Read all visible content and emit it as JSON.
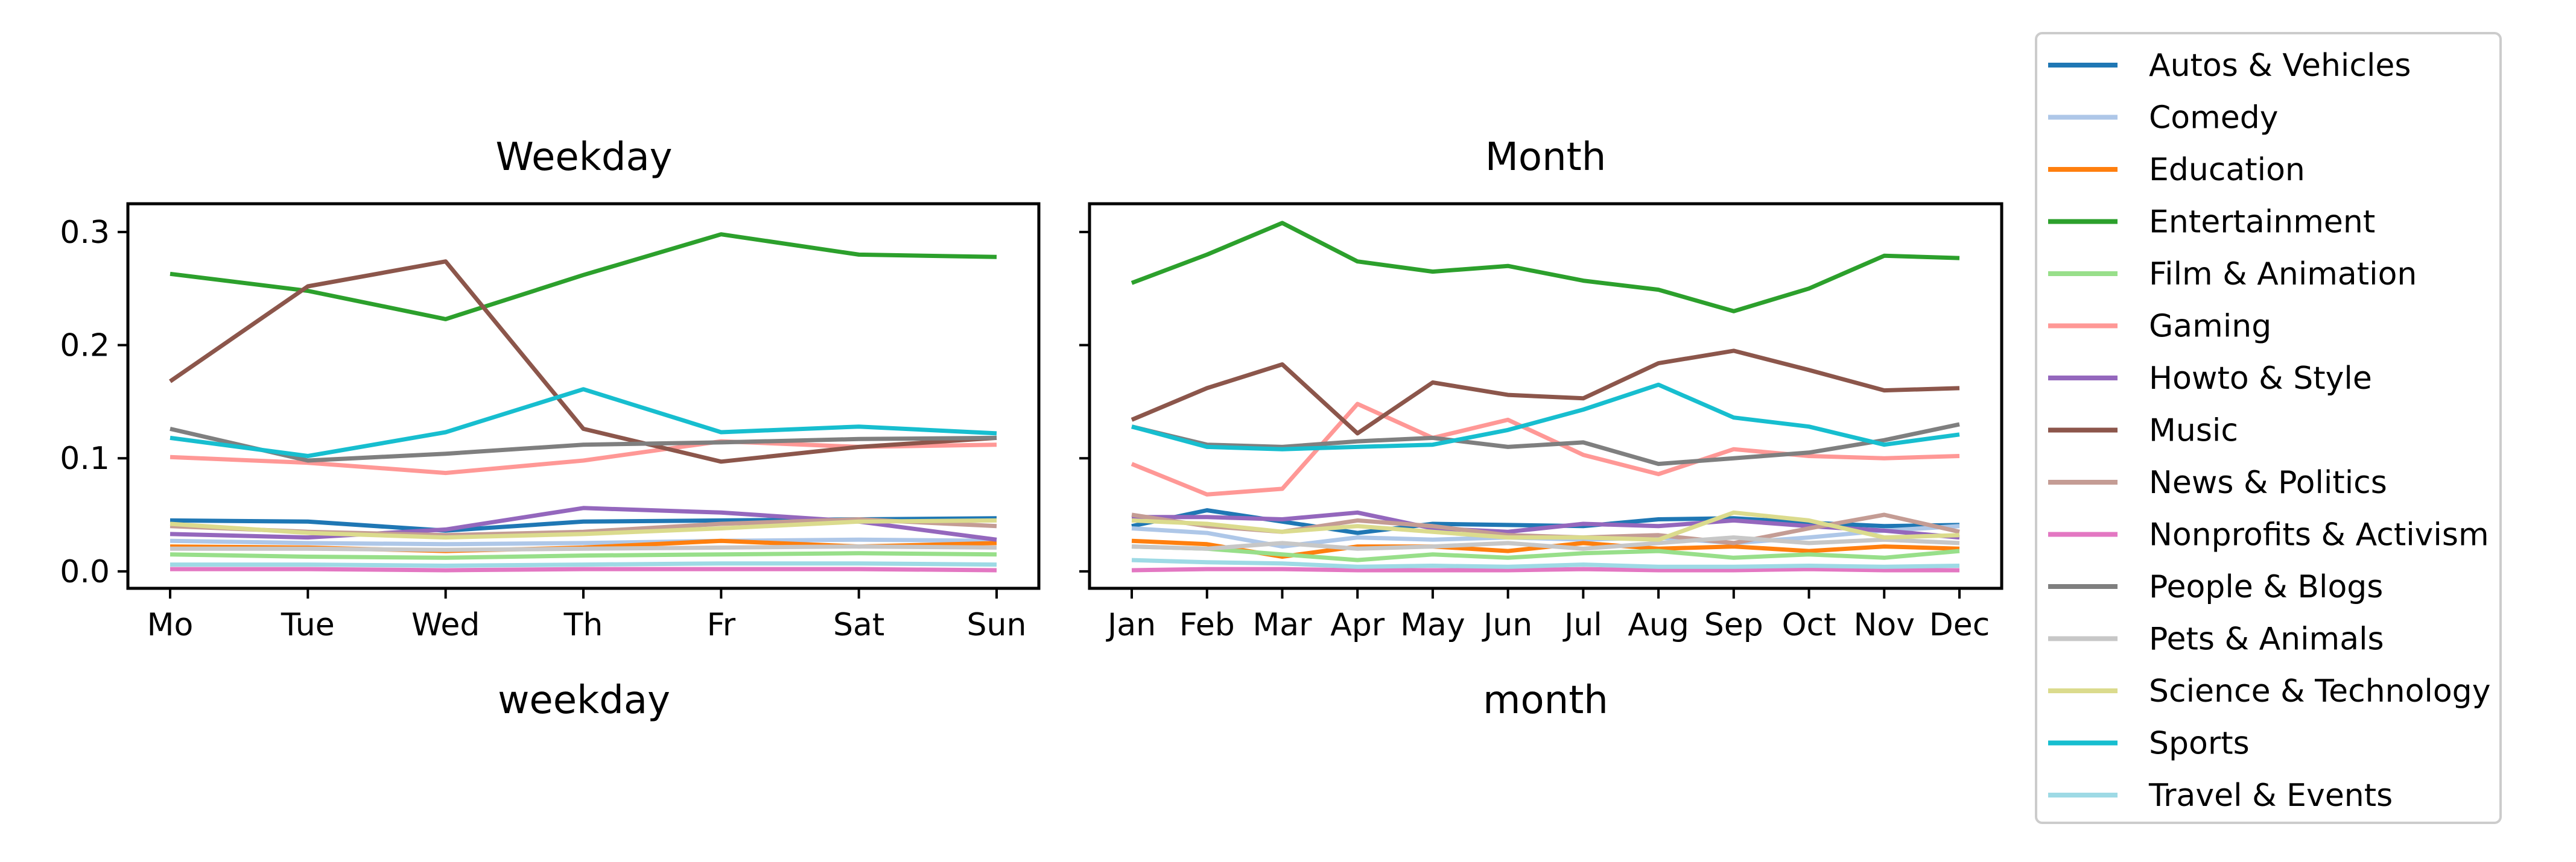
{
  "chart_data": [
    {
      "type": "line",
      "title": "Weekday",
      "xlabel": "weekday",
      "ylabel": "",
      "categories": [
        "Mo",
        "Tue",
        "Wed",
        "Th",
        "Fr",
        "Sat",
        "Sun"
      ],
      "ylim": [
        -0.015,
        0.325
      ],
      "yticks": [
        "0.0",
        "0.1",
        "0.2",
        "0.3"
      ],
      "grid": false,
      "series": [
        {
          "name": "Autos & Vehicles",
          "color": "#1f77b4",
          "values": [
            0.045,
            0.044,
            0.036,
            0.044,
            0.045,
            0.046,
            0.047
          ]
        },
        {
          "name": "Comedy",
          "color": "#aec7e8",
          "values": [
            0.027,
            0.025,
            0.024,
            0.025,
            0.027,
            0.028,
            0.027
          ]
        },
        {
          "name": "Education",
          "color": "#ff7f0e",
          "values": [
            0.022,
            0.021,
            0.018,
            0.021,
            0.027,
            0.022,
            0.025
          ]
        },
        {
          "name": "Entertainment",
          "color": "#2ca02c",
          "values": [
            0.263,
            0.248,
            0.223,
            0.262,
            0.298,
            0.28,
            0.278
          ]
        },
        {
          "name": "Film & Animation",
          "color": "#98df8a",
          "values": [
            0.015,
            0.013,
            0.012,
            0.014,
            0.015,
            0.016,
            0.015
          ]
        },
        {
          "name": "Gaming",
          "color": "#ff9896",
          "values": [
            0.101,
            0.096,
            0.087,
            0.098,
            0.115,
            0.11,
            0.112
          ]
        },
        {
          "name": "Howto & Style",
          "color": "#9467bd",
          "values": [
            0.033,
            0.03,
            0.037,
            0.056,
            0.052,
            0.044,
            0.028
          ]
        },
        {
          "name": "Music",
          "color": "#8c564b",
          "values": [
            0.168,
            0.252,
            0.274,
            0.126,
            0.097,
            0.11,
            0.118
          ]
        },
        {
          "name": "News & Politics",
          "color": "#c49c94",
          "values": [
            0.04,
            0.035,
            0.032,
            0.035,
            0.042,
            0.046,
            0.04
          ]
        },
        {
          "name": "Nonprofits & Activism",
          "color": "#e377c2",
          "values": [
            0.002,
            0.002,
            0.001,
            0.002,
            0.002,
            0.002,
            0.001
          ]
        },
        {
          "name": "People & Blogs",
          "color": "#7f7f7f",
          "values": [
            0.126,
            0.098,
            0.104,
            0.112,
            0.114,
            0.117,
            0.118
          ]
        },
        {
          "name": "Pets & Animals",
          "color": "#c7c7c7",
          "values": [
            0.02,
            0.02,
            0.019,
            0.02,
            0.021,
            0.022,
            0.021
          ]
        },
        {
          "name": "Science & Technology",
          "color": "#dbdb8d",
          "values": [
            0.042,
            0.034,
            0.03,
            0.033,
            0.038,
            0.044,
            0.045
          ]
        },
        {
          "name": "Sports",
          "color": "#17becf",
          "values": [
            0.118,
            0.102,
            0.123,
            0.161,
            0.123,
            0.128,
            0.122
          ]
        },
        {
          "name": "Travel & Events",
          "color": "#9edae5",
          "values": [
            0.006,
            0.006,
            0.005,
            0.006,
            0.007,
            0.007,
            0.006
          ]
        }
      ]
    },
    {
      "type": "line",
      "title": "Month",
      "xlabel": "month",
      "ylabel": "",
      "categories": [
        "Jan",
        "Feb",
        "Mar",
        "Apr",
        "May",
        "Jun",
        "Jul",
        "Aug",
        "Sep",
        "Oct",
        "Nov",
        "Dec"
      ],
      "ylim": [
        -0.015,
        0.325
      ],
      "yticks": [
        "",
        "",
        "",
        ""
      ],
      "grid": false,
      "series": [
        {
          "name": "Autos & Vehicles",
          "color": "#1f77b4",
          "values": [
            0.04,
            0.054,
            0.044,
            0.034,
            0.042,
            0.041,
            0.04,
            0.046,
            0.047,
            0.043,
            0.04,
            0.041
          ]
        },
        {
          "name": "Comedy",
          "color": "#aec7e8",
          "values": [
            0.038,
            0.034,
            0.022,
            0.03,
            0.028,
            0.03,
            0.028,
            0.03,
            0.025,
            0.03,
            0.036,
            0.04
          ]
        },
        {
          "name": "Education",
          "color": "#ff7f0e",
          "values": [
            0.027,
            0.024,
            0.013,
            0.022,
            0.022,
            0.018,
            0.025,
            0.02,
            0.022,
            0.018,
            0.022,
            0.02
          ]
        },
        {
          "name": "Entertainment",
          "color": "#2ca02c",
          "values": [
            0.255,
            0.28,
            0.308,
            0.274,
            0.265,
            0.27,
            0.257,
            0.249,
            0.23,
            0.25,
            0.279,
            0.277
          ]
        },
        {
          "name": "Film & Animation",
          "color": "#98df8a",
          "values": [
            0.022,
            0.02,
            0.015,
            0.01,
            0.015,
            0.012,
            0.016,
            0.018,
            0.012,
            0.015,
            0.012,
            0.018
          ]
        },
        {
          "name": "Gaming",
          "color": "#ff9896",
          "values": [
            0.095,
            0.068,
            0.073,
            0.148,
            0.118,
            0.134,
            0.103,
            0.086,
            0.108,
            0.102,
            0.1,
            0.102
          ]
        },
        {
          "name": "Howto & Style",
          "color": "#9467bd",
          "values": [
            0.048,
            0.048,
            0.046,
            0.052,
            0.038,
            0.035,
            0.042,
            0.04,
            0.045,
            0.04,
            0.036,
            0.03
          ]
        },
        {
          "name": "Music",
          "color": "#8c564b",
          "values": [
            0.134,
            0.162,
            0.183,
            0.122,
            0.167,
            0.156,
            0.153,
            0.184,
            0.195,
            0.178,
            0.16,
            0.162
          ]
        },
        {
          "name": "News & Politics",
          "color": "#c49c94",
          "values": [
            0.05,
            0.04,
            0.035,
            0.045,
            0.04,
            0.032,
            0.03,
            0.032,
            0.025,
            0.038,
            0.05,
            0.035
          ]
        },
        {
          "name": "Nonprofits & Activism",
          "color": "#e377c2",
          "values": [
            0.001,
            0.002,
            0.002,
            0.001,
            0.001,
            0.001,
            0.002,
            0.001,
            0.001,
            0.002,
            0.001,
            0.001
          ]
        },
        {
          "name": "People & Blogs",
          "color": "#7f7f7f",
          "values": [
            0.128,
            0.112,
            0.11,
            0.115,
            0.118,
            0.11,
            0.114,
            0.095,
            0.1,
            0.105,
            0.116,
            0.13
          ]
        },
        {
          "name": "Pets & Animals",
          "color": "#c7c7c7",
          "values": [
            0.022,
            0.02,
            0.025,
            0.02,
            0.022,
            0.025,
            0.02,
            0.025,
            0.03,
            0.025,
            0.028,
            0.025
          ]
        },
        {
          "name": "Science & Technology",
          "color": "#dbdb8d",
          "values": [
            0.045,
            0.042,
            0.035,
            0.04,
            0.035,
            0.03,
            0.03,
            0.028,
            0.052,
            0.045,
            0.03,
            0.032
          ]
        },
        {
          "name": "Sports",
          "color": "#17becf",
          "values": [
            0.128,
            0.11,
            0.108,
            0.11,
            0.112,
            0.125,
            0.143,
            0.165,
            0.136,
            0.128,
            0.112,
            0.121
          ]
        },
        {
          "name": "Travel & Events",
          "color": "#9edae5",
          "values": [
            0.01,
            0.008,
            0.007,
            0.004,
            0.005,
            0.004,
            0.006,
            0.004,
            0.004,
            0.005,
            0.004,
            0.005
          ]
        }
      ]
    }
  ],
  "legend": {
    "placement": "right",
    "entries": [
      {
        "label": "Autos & Vehicles",
        "color": "#1f77b4"
      },
      {
        "label": "Comedy",
        "color": "#aec7e8"
      },
      {
        "label": "Education",
        "color": "#ff7f0e"
      },
      {
        "label": "Entertainment",
        "color": "#2ca02c"
      },
      {
        "label": "Film & Animation",
        "color": "#98df8a"
      },
      {
        "label": "Gaming",
        "color": "#ff9896"
      },
      {
        "label": "Howto & Style",
        "color": "#9467bd"
      },
      {
        "label": "Music",
        "color": "#8c564b"
      },
      {
        "label": "News & Politics",
        "color": "#c49c94"
      },
      {
        "label": "Nonprofits & Activism",
        "color": "#e377c2"
      },
      {
        "label": "People & Blogs",
        "color": "#7f7f7f"
      },
      {
        "label": "Pets & Animals",
        "color": "#c7c7c7"
      },
      {
        "label": "Science & Technology",
        "color": "#dbdb8d"
      },
      {
        "label": "Sports",
        "color": "#17becf"
      },
      {
        "label": "Travel & Events",
        "color": "#9edae5"
      }
    ]
  }
}
